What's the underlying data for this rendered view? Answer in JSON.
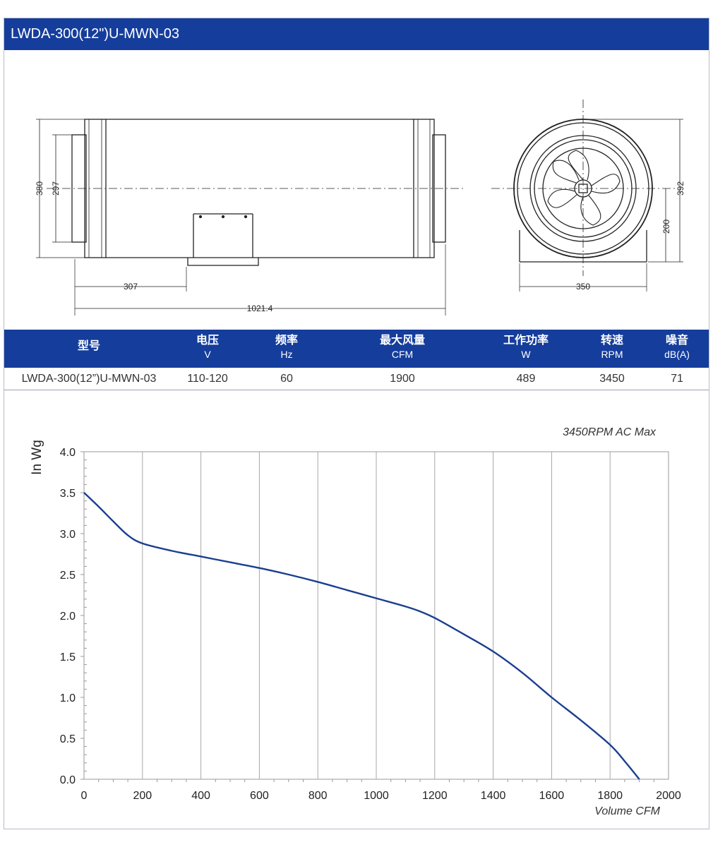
{
  "title": "LWDA-300(12\")U-MWN-03",
  "drawing": {
    "dim_380": "380",
    "dim_297": "297",
    "dim_307": "307",
    "dim_length": "1021.4",
    "dim_392": "392",
    "dim_200": "200",
    "dim_350": "350"
  },
  "spec_table": {
    "headers": [
      {
        "l1": "型号",
        "l2": ""
      },
      {
        "l1": "电压",
        "l2": "V"
      },
      {
        "l1": "频率",
        "l2": "Hz"
      },
      {
        "l1": "最大风量",
        "l2": "CFM"
      },
      {
        "l1": "工作功率",
        "l2": "W"
      },
      {
        "l1": "转速",
        "l2": "RPM"
      },
      {
        "l1": "噪音",
        "l2": "dB(A)"
      }
    ],
    "row": [
      "LWDA-300(12”)U-MWN-03",
      "110-120",
      "60",
      "1900",
      "489",
      "3450",
      "71"
    ]
  },
  "chart_data": {
    "type": "line",
    "title": "3450RPM AC Max",
    "xlabel": "Volume CFM",
    "ylabel": "In Wg",
    "xlim": [
      0,
      2000
    ],
    "ylim": [
      0,
      4.0
    ],
    "x_ticks": [
      "0",
      "200",
      "400",
      "600",
      "800",
      "1000",
      "1200",
      "1400",
      "1600",
      "1800",
      "2000"
    ],
    "y_ticks": [
      "0.0",
      "0.5",
      "1.0",
      "1.5",
      "2.0",
      "2.5",
      "3.0",
      "3.5",
      "4.0"
    ],
    "grid": "vertical",
    "series": [
      {
        "x": [
          0,
          50,
          100,
          150,
          200,
          300,
          400,
          500,
          600,
          700,
          800,
          900,
          1000,
          1100,
          1150,
          1200,
          1300,
          1400,
          1500,
          1600,
          1700,
          1800,
          1850,
          1900
        ],
        "y": [
          3.5,
          3.33,
          3.15,
          2.98,
          2.88,
          2.79,
          2.72,
          2.65,
          2.58,
          2.5,
          2.41,
          2.31,
          2.21,
          2.11,
          2.05,
          1.97,
          1.77,
          1.56,
          1.3,
          1.0,
          0.72,
          0.42,
          0.22,
          0.0
        ],
        "color": "#1b3f8f"
      }
    ]
  }
}
